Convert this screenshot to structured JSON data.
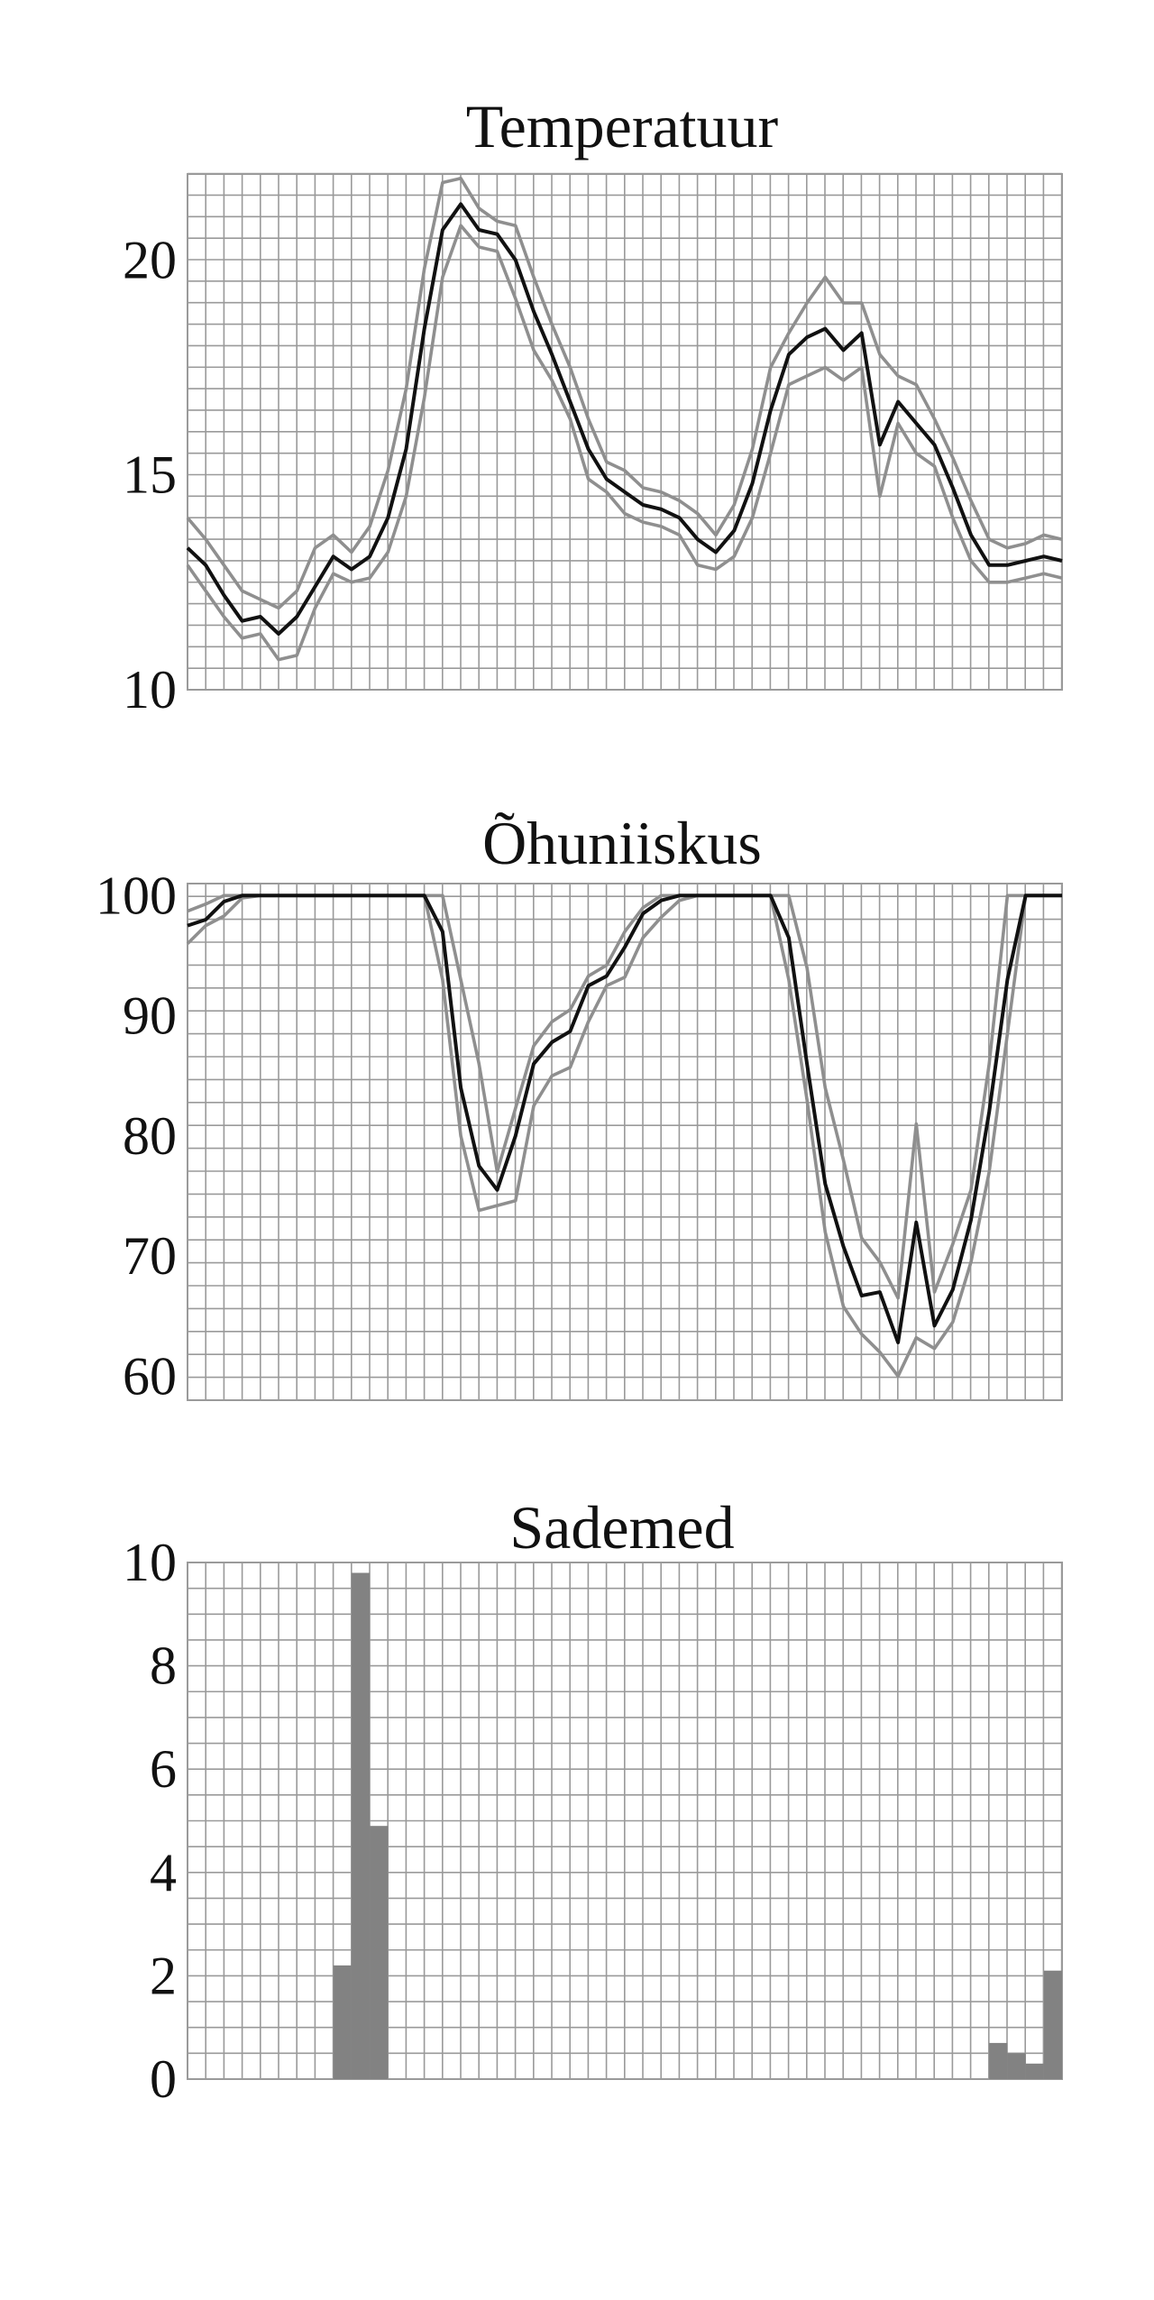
{
  "colors": {
    "grid": "#9a9a9a",
    "band": "#8f8f8f",
    "main_line": "#111111",
    "bar": "#828282"
  },
  "chart_data": [
    {
      "type": "line",
      "title": "Temperatuur",
      "xlabel": "",
      "ylabel": "",
      "ylim": [
        10,
        22
      ],
      "yticks": [
        10,
        15,
        20
      ],
      "grid": true,
      "x_count": 49,
      "series": [
        {
          "role": "mean",
          "values": [
            13.3,
            12.9,
            12.2,
            11.6,
            11.7,
            11.3,
            11.7,
            12.4,
            13.1,
            12.8,
            13.1,
            14.0,
            15.6,
            18.4,
            20.7,
            21.3,
            20.7,
            20.6,
            20.0,
            18.8,
            17.8,
            16.7,
            15.6,
            14.9,
            14.6,
            14.3,
            14.2,
            14.0,
            13.5,
            13.2,
            13.7,
            14.8,
            16.5,
            17.8,
            18.2,
            18.4,
            17.9,
            18.3,
            15.7,
            16.7,
            16.2,
            15.7,
            14.7,
            13.6,
            12.9,
            12.9,
            13.0,
            13.1,
            13.0
          ]
        },
        {
          "role": "upper",
          "values": [
            14.0,
            13.5,
            12.9,
            12.3,
            12.1,
            11.9,
            12.3,
            13.3,
            13.6,
            13.2,
            13.8,
            15.1,
            17.0,
            19.8,
            21.8,
            21.9,
            21.2,
            20.9,
            20.8,
            19.6,
            18.5,
            17.5,
            16.3,
            15.3,
            15.1,
            14.7,
            14.6,
            14.4,
            14.1,
            13.6,
            14.3,
            15.6,
            17.5,
            18.3,
            19.0,
            19.6,
            19.0,
            19.0,
            17.8,
            17.3,
            17.1,
            16.3,
            15.4,
            14.4,
            13.5,
            13.3,
            13.4,
            13.6,
            13.5
          ]
        },
        {
          "role": "lower",
          "values": [
            12.9,
            12.3,
            11.7,
            11.2,
            11.3,
            10.7,
            10.8,
            11.9,
            12.7,
            12.5,
            12.6,
            13.2,
            14.5,
            16.8,
            19.6,
            20.8,
            20.3,
            20.2,
            19.1,
            17.9,
            17.2,
            16.3,
            14.9,
            14.6,
            14.1,
            13.9,
            13.8,
            13.6,
            12.9,
            12.8,
            13.1,
            14.0,
            15.5,
            17.1,
            17.3,
            17.5,
            17.2,
            17.5,
            14.5,
            16.2,
            15.5,
            15.2,
            14.0,
            13.0,
            12.5,
            12.5,
            12.6,
            12.7,
            12.6
          ]
        }
      ]
    },
    {
      "type": "line",
      "title": "Õhuniiskus",
      "xlabel": "",
      "ylabel": "",
      "ylim": [
        58,
        101
      ],
      "yticks": [
        60,
        70,
        80,
        90,
        100
      ],
      "grid": true,
      "x_count": 49,
      "series": [
        {
          "role": "mean",
          "values": [
            97.5,
            98.0,
            99.5,
            100,
            100,
            100,
            100,
            100,
            100,
            100,
            100,
            100,
            100,
            100,
            97.0,
            84.0,
            77.5,
            75.5,
            80.0,
            86.0,
            87.8,
            88.7,
            92.5,
            93.3,
            95.7,
            98.5,
            99.6,
            100,
            100,
            100,
            100,
            100,
            100,
            96.5,
            86.0,
            76.0,
            70.8,
            66.7,
            67.0,
            62.8,
            72.8,
            64.2,
            67.2,
            73.0,
            82.0,
            93.0,
            100,
            100,
            100
          ]
        },
        {
          "role": "upper",
          "values": [
            98.7,
            99.3,
            100,
            100,
            100,
            100,
            100,
            100,
            100,
            100,
            100,
            100,
            100,
            100,
            100,
            93.0,
            86.0,
            77.0,
            82.3,
            87.5,
            89.5,
            90.5,
            93.3,
            94.2,
            97.0,
            99.0,
            100,
            100,
            100,
            100,
            100,
            100,
            100,
            100,
            94.0,
            84.0,
            78.0,
            71.5,
            69.5,
            66.5,
            81.0,
            67.0,
            71.0,
            75.5,
            86.0,
            100,
            100,
            100,
            100
          ]
        },
        {
          "role": "lower",
          "values": [
            96.0,
            97.5,
            98.3,
            99.8,
            100,
            100,
            100,
            100,
            100,
            100,
            100,
            100,
            100,
            100,
            93.0,
            80.0,
            73.8,
            74.2,
            74.6,
            82.5,
            85.0,
            85.7,
            89.5,
            92.5,
            93.2,
            96.5,
            98.2,
            99.6,
            100,
            100,
            100,
            100,
            100,
            93.0,
            83.0,
            72.0,
            65.8,
            63.5,
            62.0,
            60.0,
            63.2,
            62.3,
            64.5,
            69.5,
            77.0,
            88.5,
            100,
            100,
            100
          ]
        }
      ]
    },
    {
      "type": "bar",
      "title": "Sademed",
      "xlabel": "",
      "ylabel": "",
      "ylim": [
        0,
        10
      ],
      "yticks": [
        0,
        2,
        4,
        6,
        8,
        10
      ],
      "grid": true,
      "x_count": 48,
      "values": [
        0,
        0,
        0,
        0,
        0,
        0,
        0,
        0,
        2.2,
        9.8,
        4.9,
        0,
        0,
        0,
        0,
        0,
        0,
        0,
        0,
        0,
        0,
        0,
        0,
        0,
        0,
        0,
        0,
        0,
        0,
        0,
        0,
        0,
        0,
        0,
        0,
        0,
        0,
        0,
        0,
        0,
        0,
        0,
        0,
        0,
        0.7,
        0.5,
        0.3,
        2.1
      ]
    }
  ]
}
